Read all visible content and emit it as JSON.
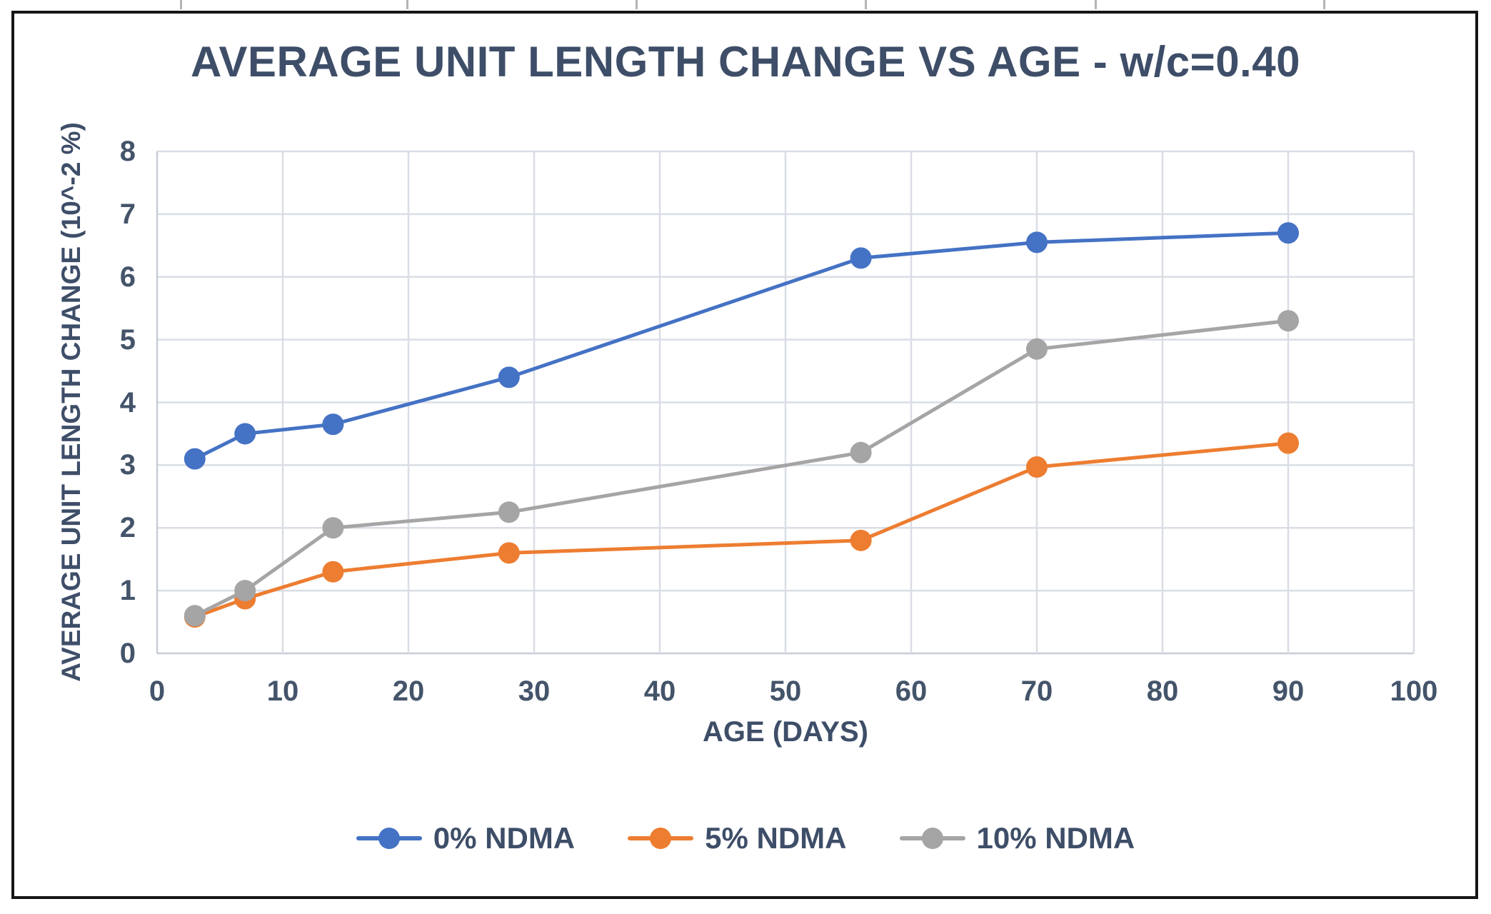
{
  "chart_data": {
    "type": "line",
    "title": "AVERAGE UNIT LENGTH CHANGE VS AGE - w/c=0.40",
    "xlabel": "AGE (DAYS)",
    "ylabel": "AVERAGE UNIT LENGTH CHANGE (10^-2 %)",
    "x": [
      3,
      7,
      14,
      28,
      56,
      70,
      90
    ],
    "series": [
      {
        "name": "0% NDMA",
        "color": "#4472C4",
        "values": [
          3.1,
          3.5,
          3.65,
          4.4,
          6.3,
          6.55,
          6.7
        ]
      },
      {
        "name": "5% NDMA",
        "color": "#ED7D31",
        "values": [
          0.58,
          0.87,
          1.3,
          1.6,
          1.8,
          2.97,
          3.35
        ]
      },
      {
        "name": "10% NDMA",
        "color": "#A5A5A5",
        "values": [
          0.6,
          1.0,
          2.0,
          2.25,
          3.2,
          4.85,
          5.3
        ]
      }
    ],
    "xlim": [
      0,
      100
    ],
    "ylim": [
      0,
      8
    ],
    "xticks": [
      0,
      10,
      20,
      30,
      40,
      50,
      60,
      70,
      80,
      90,
      100
    ],
    "yticks": [
      0,
      1,
      2,
      3,
      4,
      5,
      6,
      7,
      8
    ],
    "grid": true,
    "legend_position": "bottom",
    "marker": "circle"
  },
  "colors": {
    "text": "#3E4E68",
    "tick_text": "#44546A",
    "gridline": "#D9DDE5",
    "axis_line": "#C7CDD8",
    "frame_border": "#161616",
    "background": "#FFFFFF"
  }
}
